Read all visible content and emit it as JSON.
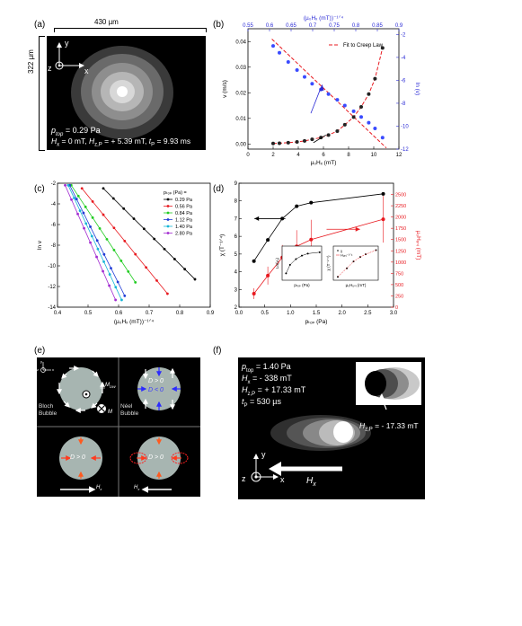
{
  "panel_a": {
    "label": "(a)",
    "width_label": "430 µm",
    "height_label": "322 µm",
    "axis_y": "y",
    "axis_z": "z",
    "axis_x": "x",
    "p_top": "p",
    "p_top_sub": "top",
    "p_top_val": " = 0.29 Pa",
    "Hx_line": "H",
    "Hx_sub": "x",
    "Hx_val": " = 0 mT, ",
    "HzP": "H",
    "HzP_sub": "z,P",
    "HzP_val": " = + 5.39 mT, ",
    "tP": "t",
    "tP_sub": "P",
    "tP_val": " = 9.93 ms"
  },
  "panel_b": {
    "label": "(b)",
    "top_axis_label": "(µ₀Hₓ (mT))⁻¹ᐟ⁴",
    "bottom_axis_label": "µ₀Hₓ (mT)",
    "left_axis_label": "v (m/s)",
    "right_axis_label": "ln (v)",
    "legend": "Fit to Creep Law"
  },
  "panel_c": {
    "label": "(c)",
    "ylabel": "ln v",
    "xlabel": "(µ₀Hₓ (mT))⁻¹ᐟ⁴",
    "legend_title": "pₜₒₚ (Pa) =",
    "legend_items": [
      "0.29 Pa",
      "0.56 Pa",
      "0.84 Pa",
      "1.12 Pa",
      "1.40 Pa",
      "2.80 Pa"
    ]
  },
  "panel_d": {
    "label": "(d)",
    "left_axis_label": "χ (T⁻¹ᐟ⁴)",
    "right_axis_label": "µ₀Hᵤₙᵢ (mT)",
    "xlabel": "pₜₒₚ (Pa)",
    "inset1_x": "pₜₒₚ (Pa)",
    "inset1_y": "Ln(v₀)",
    "inset2_x": "µ₀Hᵤₙᵢ (mT)",
    "inset2_y": "χ (T⁻¹ᐟ⁴)",
    "inset2_leg1": "χ",
    "inset2_leg2": "Hᵤₙᵢ⁻¹ᐟ⁴"
  },
  "panel_e": {
    "label": "(e)",
    "bloch": "Bloch",
    "bubble": "Bubble",
    "neel": "Néel",
    "bubble2": "Bubble",
    "mdw": "M",
    "mdw_sub": "DW",
    "m": "M",
    "dpos": "D > 0",
    "dneg": "D < 0",
    "dpos2": "D > 0",
    "dpos3": "D > 0",
    "hx": "H",
    "hx_sub": "x",
    "hx2": "H",
    "hx2_sub": "x",
    "ax_z": "z",
    "ax_x": "x",
    "ax_y": "y"
  },
  "panel_f": {
    "label": "(f)",
    "p_top": "p",
    "p_top_sub": "top",
    "p_top_val": " = 1.40 Pa",
    "hx": "H",
    "hx_sub": "x",
    "hx_val": " = - 338 mT",
    "hzp": "H",
    "hzp_sub": "z,P",
    "hzp_val": " = + 17.33 mT",
    "tp": "t",
    "tp_sub": "P",
    "tp_val": " = 530 µs",
    "inset_h": "H",
    "inset_h_sub": "z,P",
    "inset_val": " = - 17.33 mT",
    "arrow_label": "H",
    "arrow_label_sub": "x",
    "ax_y": "y",
    "ax_z": "z",
    "ax_x": "x"
  },
  "chart_data": [
    {
      "type": "scatter",
      "title": "",
      "xlabel": "µ₀Hₓ (mT)",
      "ylabel": "v (m/s)",
      "xlim": [
        0,
        12
      ],
      "ylim": [
        -0.002,
        0.045
      ],
      "x_ticks": [
        "0",
        "2",
        "4",
        "6",
        "8",
        "10",
        "12"
      ],
      "y_ticks": [
        "0.00",
        "0.01",
        "0.02",
        "0.03",
        "0.04"
      ],
      "top_ticks": [
        "0.55",
        "0.6",
        "0.65",
        "0.7",
        "0.75",
        "0.8",
        "0.85",
        "0.9"
      ],
      "right_ticks": [
        "-2",
        "-4",
        "-6",
        "-8",
        "-10",
        "-12"
      ],
      "series": [
        {
          "name": "",
          "x": [
            2,
            2.5,
            3.2,
            3.9,
            4.5,
            5.1,
            5.8,
            6.4,
            7.1,
            7.7,
            8.4,
            9.0,
            9.6,
            10.1,
            10.7
          ],
          "values": [
            0.0002,
            0.0003,
            0.0005,
            0.0008,
            0.0012,
            0.0018,
            0.0025,
            0.0035,
            0.005,
            0.0075,
            0.0105,
            0.0145,
            0.0195,
            0.0255,
            0.0375
          ]
        },
        {
          "name": "",
          "axis": "right",
          "x": [
            2,
            2.5,
            3.2,
            3.9,
            4.5,
            5.1,
            5.8,
            6.4,
            7.1,
            7.7,
            8.4,
            9.0,
            9.6,
            10.1,
            10.7
          ],
          "values": [
            -3.0,
            -3.6,
            -4.4,
            -5.1,
            -5.7,
            -6.3,
            -6.8,
            -7.2,
            -7.7,
            -8.2,
            -8.7,
            -9.2,
            -9.7,
            -10.2,
            -11.0
          ]
        }
      ],
      "fit_label": "Fit to Creep Law"
    },
    {
      "type": "line",
      "xlabel": "(µ₀Hₓ (mT))⁻¹ᐟ⁴",
      "ylabel": "ln v",
      "xlim": [
        0.4,
        0.9
      ],
      "ylim": [
        -14,
        -2
      ],
      "x_ticks": [
        "0.4",
        "0.5",
        "0.6",
        "0.7",
        "0.8",
        "0.9"
      ],
      "y_ticks": [
        "-2",
        "-4",
        "-6",
        "-8",
        "-10",
        "-12",
        "-14"
      ],
      "series": [
        {
          "name": "0.29 Pa",
          "color": "#000000",
          "x": [
            0.55,
            0.85
          ],
          "values": [
            -2.5,
            -11.3
          ]
        },
        {
          "name": "0.56 Pa",
          "color": "#e8191f",
          "x": [
            0.48,
            0.76
          ],
          "values": [
            -2.5,
            -12.7
          ]
        },
        {
          "name": "0.84 Pa",
          "color": "#22cc22",
          "x": [
            0.445,
            0.655
          ],
          "values": [
            -2.2,
            -11.6
          ]
        },
        {
          "name": "1.12 Pa",
          "color": "#1f3bd6",
          "x": [
            0.44,
            0.62
          ],
          "values": [
            -2.2,
            -12.9
          ]
        },
        {
          "name": "1.40 Pa",
          "color": "#17b6d8",
          "x": [
            0.435,
            0.61
          ],
          "values": [
            -2.2,
            -13.3
          ]
        },
        {
          "name": "2.80 Pa",
          "color": "#a22bd1",
          "x": [
            0.425,
            0.59
          ],
          "values": [
            -2.2,
            -13.3
          ]
        }
      ]
    },
    {
      "type": "line",
      "xlabel": "pₜₒₚ (Pa)",
      "ylabel": "χ (T⁻¹ᐟ⁴)",
      "y2label": "µ₀Hᵤₙᵢ (mT)",
      "xlim": [
        0,
        3
      ],
      "ylim": [
        2,
        9
      ],
      "y2lim": [
        0,
        2750
      ],
      "x_ticks": [
        "0.0",
        "0.5",
        "1.0",
        "1.5",
        "2.0",
        "2.5",
        "3.0"
      ],
      "y_ticks": [
        "2",
        "3",
        "4",
        "5",
        "6",
        "7",
        "8",
        "9"
      ],
      "y2_ticks": [
        "0",
        "250",
        "500",
        "750",
        "1000",
        "1250",
        "1500",
        "1750",
        "2000",
        "2250",
        "2500"
      ],
      "series": [
        {
          "name": "χ",
          "color": "#000000",
          "x": [
            0.29,
            0.56,
            0.84,
            1.12,
            1.4,
            2.8
          ],
          "values": [
            4.6,
            5.8,
            7.0,
            7.7,
            7.9,
            8.4
          ]
        },
        {
          "name": "µ₀Hᵤₙᵢ",
          "color": "#e8191f",
          "axis": "right",
          "x": [
            0.29,
            0.56,
            0.84,
            1.12,
            1.4,
            2.8
          ],
          "values": [
            300,
            700,
            1100,
            1350,
            1500,
            1950
          ]
        }
      ]
    }
  ]
}
